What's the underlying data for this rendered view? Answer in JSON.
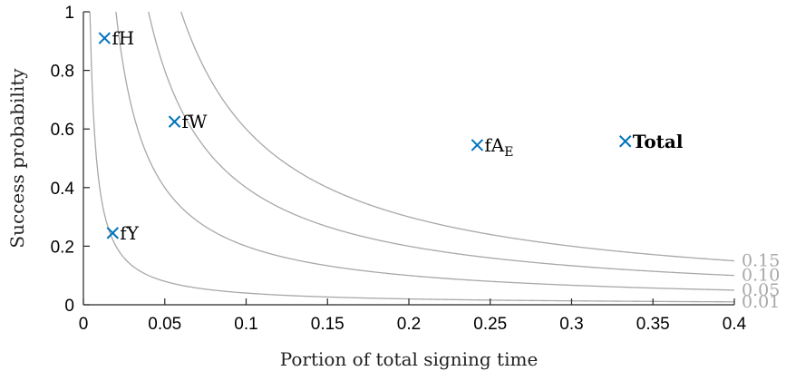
{
  "chart_data": {
    "type": "scatter",
    "xlabel": "Portion of total signing time",
    "ylabel": "Success probability",
    "xlim": [
      0,
      0.4
    ],
    "ylim": [
      0,
      1
    ],
    "x_ticks": [
      0,
      0.05,
      0.1,
      0.15,
      0.2,
      0.25,
      0.3,
      0.35,
      0.4
    ],
    "x_tick_labels": [
      "0",
      "0.05",
      "0.1",
      "0.15",
      "0.2",
      "0.25",
      "0.3",
      "0.35",
      "0.4"
    ],
    "y_ticks": [
      0,
      0.2,
      0.4,
      0.6,
      0.8,
      1
    ],
    "y_tick_labels": [
      "0",
      "0.2",
      "0.4",
      "0.6",
      "0.8",
      "1"
    ],
    "grid": false,
    "marker_color": "#0072bd",
    "curve_color": "#a8a8a8",
    "points": [
      {
        "name": "fH",
        "x": 0.013,
        "y": 0.91,
        "bold": false
      },
      {
        "name": "fW",
        "x": 0.056,
        "y": 0.625,
        "bold": false
      },
      {
        "name": "fY",
        "x": 0.018,
        "y": 0.245,
        "bold": false
      },
      {
        "name": "fA",
        "subscript": "E",
        "x": 0.242,
        "y": 0.545,
        "bold": false
      },
      {
        "name": "Total",
        "x": 0.333,
        "y": 0.558,
        "bold": true
      }
    ],
    "iso_curves": [
      {
        "label": "0.15",
        "value": 0.06
      },
      {
        "label": "0.10",
        "value": 0.04
      },
      {
        "label": "0.05",
        "value": 0.02
      },
      {
        "label": "0.01",
        "value": 0.004
      }
    ]
  }
}
